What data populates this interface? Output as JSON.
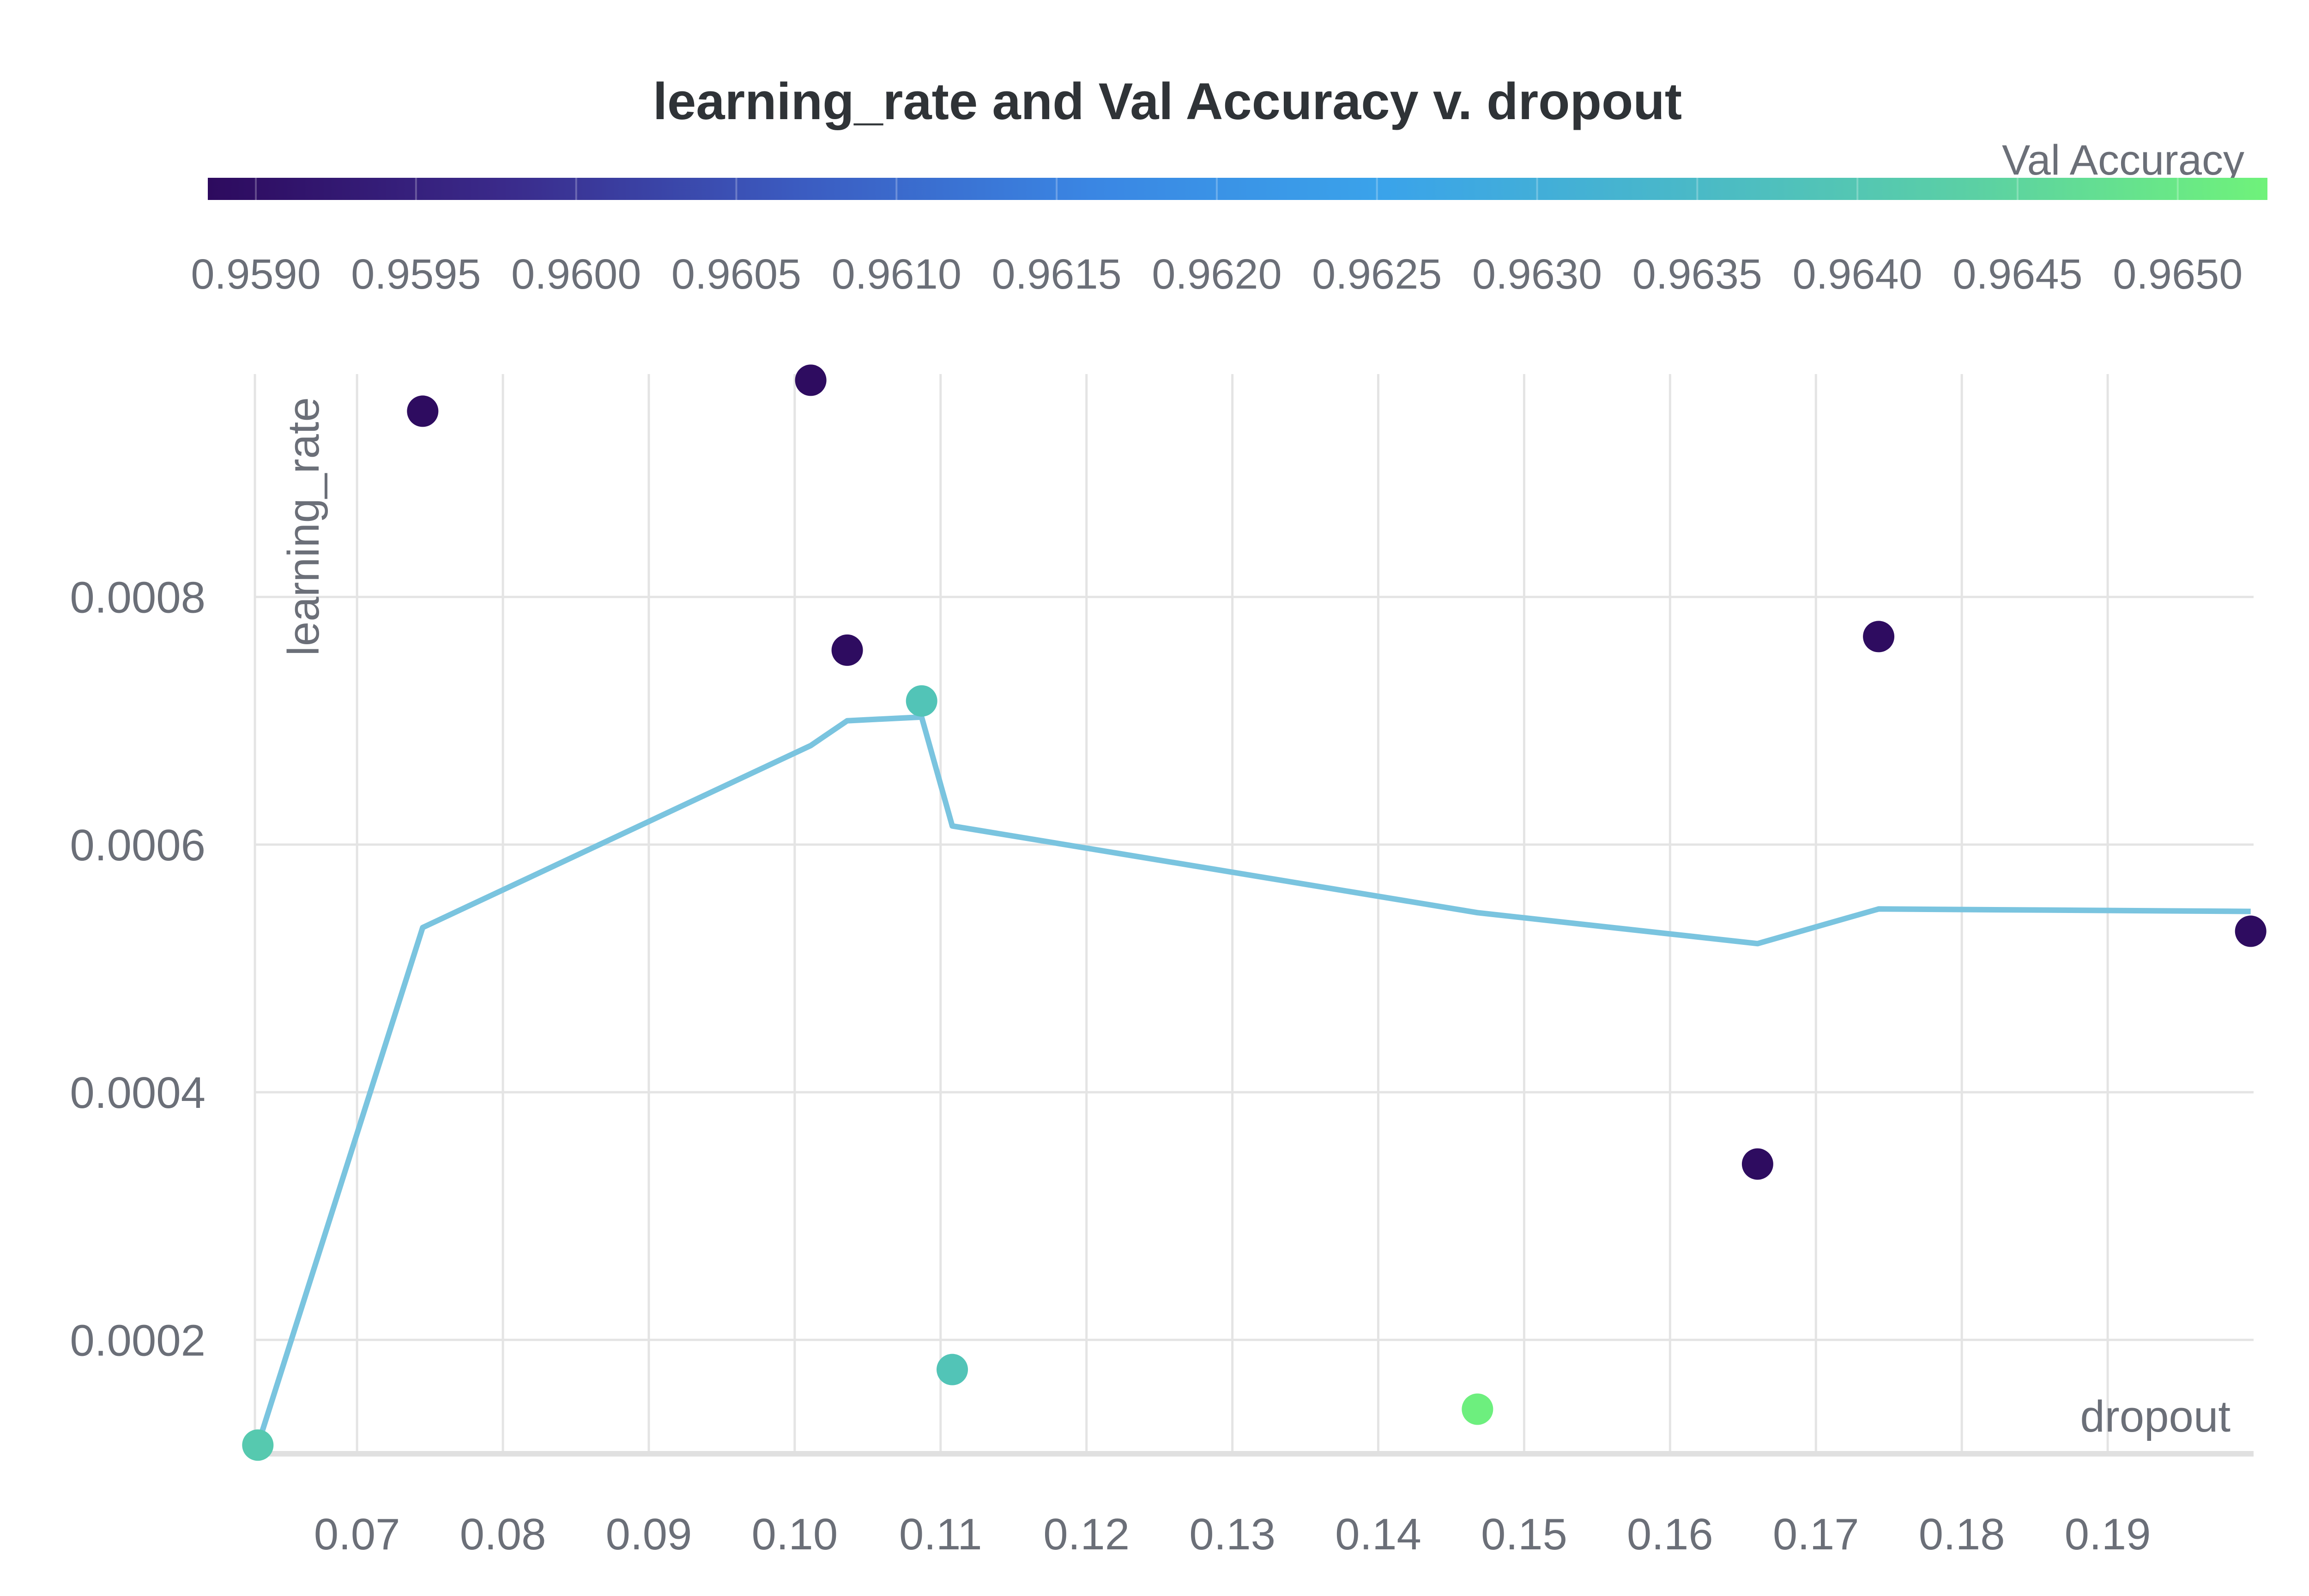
{
  "chart_data": {
    "type": "scatter",
    "title": "learning_rate and Val Accuracy v. dropout",
    "xlabel": "dropout",
    "ylabel": "learning_rate",
    "xlim": [
      0.063,
      0.2
    ],
    "ylim": [
      0.000108,
      0.00098
    ],
    "x_ticks": [
      "0.07",
      "0.08",
      "0.09",
      "0.10",
      "0.11",
      "0.12",
      "0.13",
      "0.14",
      "0.15",
      "0.16",
      "0.17",
      "0.18",
      "0.19"
    ],
    "y_ticks": [
      "0.0002",
      "0.0004",
      "0.0006",
      "0.0008"
    ],
    "colorbar": {
      "label": "Val Accuracy",
      "range": [
        0.95885,
        0.96528
      ],
      "ticks": [
        "0.9590",
        "0.9595",
        "0.9600",
        "0.9605",
        "0.9610",
        "0.9615",
        "0.9620",
        "0.9625",
        "0.9630",
        "0.9635",
        "0.9640",
        "0.9645",
        "0.9650"
      ],
      "colors": [
        "#2d0a5e",
        "#3a2a8a",
        "#3b5bc0",
        "#3a86e3",
        "#3aa3ea",
        "#49b8c9",
        "#5bd0a4",
        "#6ff27a"
      ]
    },
    "points": [
      {
        "x": 0.0632,
        "y": 0.000115,
        "value": 0.9641
      },
      {
        "x": 0.0745,
        "y": 0.00095,
        "value": 0.9589
      },
      {
        "x": 0.1011,
        "y": 0.000975,
        "value": 0.9589
      },
      {
        "x": 0.1036,
        "y": 0.000757,
        "value": 0.9589
      },
      {
        "x": 0.1087,
        "y": 0.000716,
        "value": 0.9639
      },
      {
        "x": 0.1108,
        "y": 0.000176,
        "value": 0.9639
      },
      {
        "x": 0.1468,
        "y": 0.000144,
        "value": 0.9652
      },
      {
        "x": 0.166,
        "y": 0.000342,
        "value": 0.9589
      },
      {
        "x": 0.1743,
        "y": 0.000768,
        "value": 0.9589
      },
      {
        "x": 0.1998,
        "y": 0.00053,
        "value": 0.9589
      }
    ],
    "trend_line": {
      "color": "#7ac4df",
      "x": [
        0.0632,
        0.0745,
        0.1011,
        0.1036,
        0.1087,
        0.1108,
        0.1468,
        0.166,
        0.1743,
        0.1998
      ],
      "y": [
        0.000115,
        0.000533,
        0.00068,
        0.0007,
        0.000703,
        0.000615,
        0.000545,
        0.00052,
        0.000548,
        0.000546
      ]
    }
  }
}
